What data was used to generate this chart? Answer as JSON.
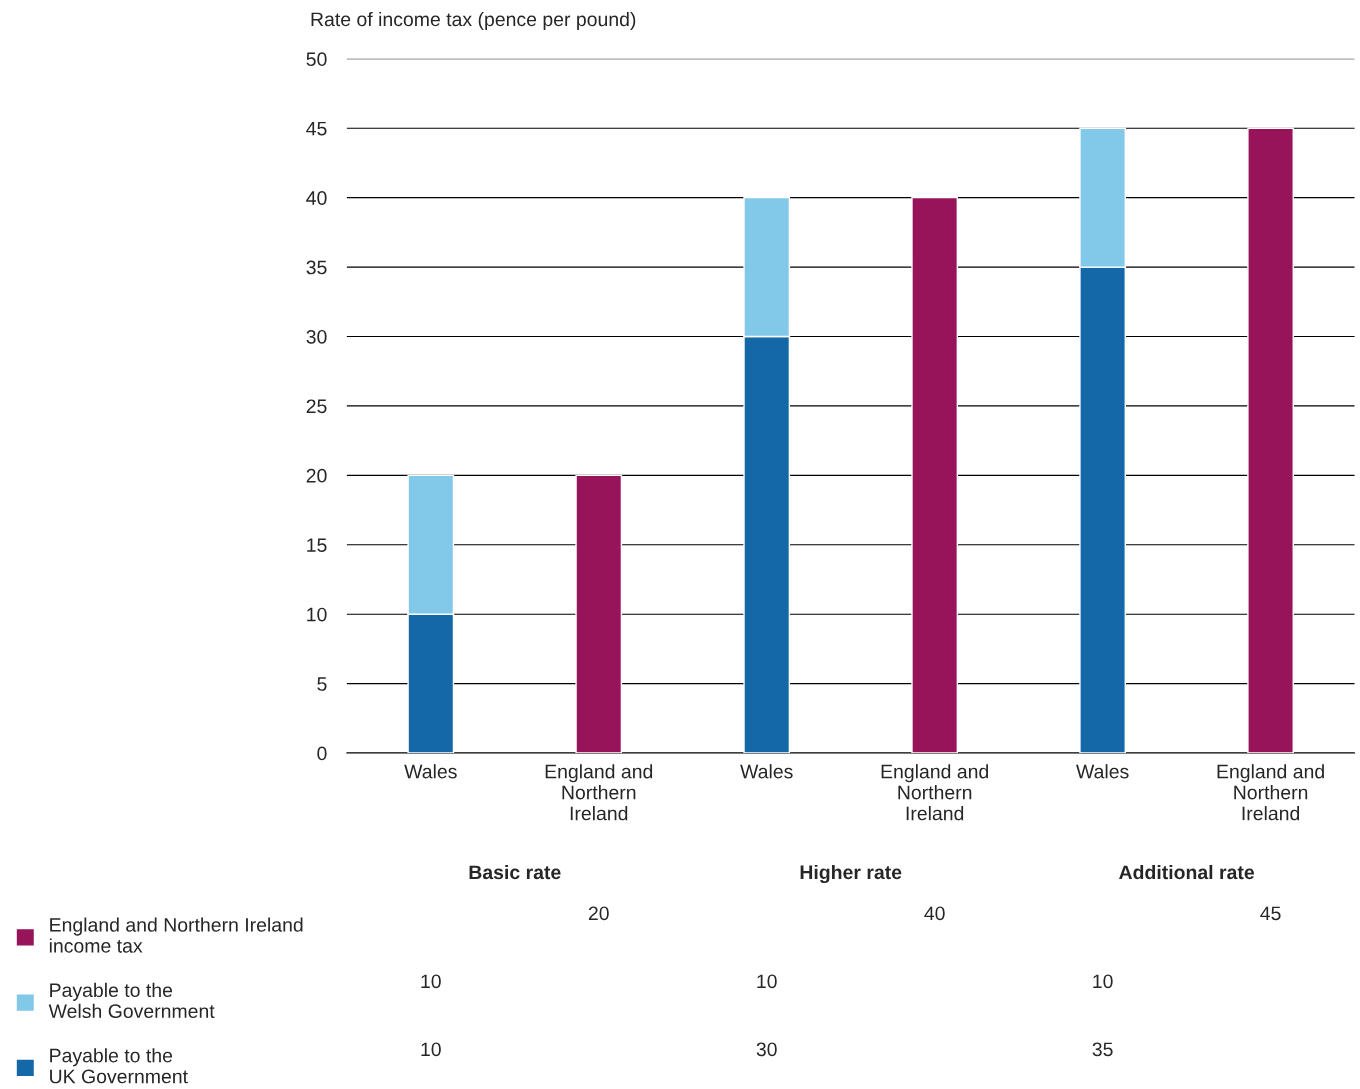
{
  "chart_data": {
    "type": "bar",
    "ylabel": "Rate of income tax (pence per pound)",
    "categories": [
      "Wales",
      "England and\nNorthern\nIreland",
      "Wales",
      "England and\nNorthern\nIreland",
      "Wales",
      "England and\nNorthern\nIreland"
    ],
    "series": [
      {
        "name": "Payable to the\nUK Government",
        "color": "#1468a8",
        "values": [
          10,
          null,
          30,
          null,
          35,
          null
        ]
      },
      {
        "name": "Payable to the\nWelsh Government",
        "color": "#82c8e8",
        "values": [
          10,
          null,
          10,
          null,
          10,
          null
        ]
      },
      {
        "name": "England and Northern Ireland\nincome tax",
        "color": "#98145a",
        "values": [
          null,
          20,
          null,
          40,
          null,
          45
        ]
      }
    ],
    "stacked": true,
    "ylim": [
      0,
      50
    ],
    "yticks": [
      0,
      5,
      10,
      15,
      20,
      25,
      30,
      35,
      40,
      45,
      50
    ],
    "grid": "y",
    "legend": "bottom left",
    "data_labels": true,
    "annotations": [
      "Basic rate",
      "Higher rate",
      "Additional rate"
    ]
  }
}
